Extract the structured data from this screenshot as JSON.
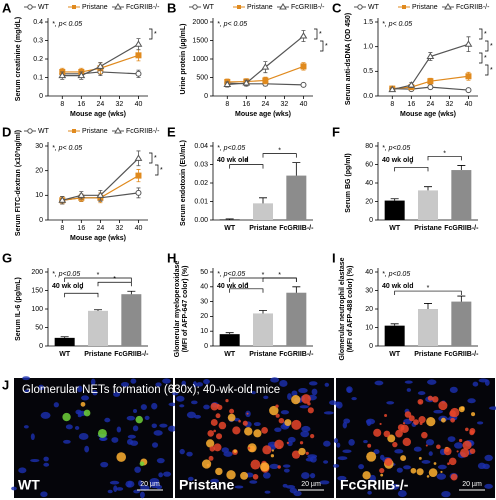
{
  "chart_data": [
    {
      "panel": "A",
      "type": "line",
      "ylabel": "Serum creatinine (mg/dL)",
      "xlabel": "Mouse age (wks)",
      "note": "*, p< 0.05",
      "sig": [
        "*"
      ],
      "x": [
        8,
        16,
        24,
        40
      ],
      "xlim": [
        2,
        44
      ],
      "xticks": [
        8,
        16,
        24,
        32,
        40
      ],
      "ylim": [
        0,
        0.4
      ],
      "yticks": [
        0,
        0.1,
        0.2,
        0.3,
        0.4
      ],
      "series": [
        {
          "name": "WT",
          "color": "#555555",
          "marker": "circle",
          "values": [
            0.12,
            0.12,
            0.13,
            0.12
          ],
          "errors": [
            0.02,
            0.02,
            0.02,
            0.02
          ]
        },
        {
          "name": "Pristane",
          "color": "#e08a1e",
          "marker": "square",
          "values": [
            0.13,
            0.13,
            0.15,
            0.22
          ],
          "errors": [
            0.02,
            0.02,
            0.03,
            0.03
          ]
        },
        {
          "name": "FcGRIIB-/-",
          "color": "#555555",
          "marker": "triangle",
          "values": [
            0.11,
            0.11,
            0.16,
            0.28
          ],
          "errors": [
            0.02,
            0.02,
            0.02,
            0.03
          ]
        }
      ]
    },
    {
      "panel": "B",
      "type": "line",
      "ylabel": "Urine protein (µg/mL)",
      "xlabel": "Mouse age (wks)",
      "note": "*, p< 0.05",
      "sig": [
        "*",
        "*"
      ],
      "x": [
        8,
        16,
        24,
        40
      ],
      "xlim": [
        2,
        44
      ],
      "xticks": [
        8,
        16,
        24,
        32,
        40
      ],
      "ylim": [
        0,
        2000
      ],
      "yticks": [
        0,
        500,
        1000,
        1500,
        2000
      ],
      "series": [
        {
          "name": "WT",
          "color": "#555555",
          "marker": "circle",
          "values": [
            350,
            330,
            330,
            300
          ],
          "errors": [
            80,
            60,
            60,
            40
          ]
        },
        {
          "name": "Pristane",
          "color": "#e08a1e",
          "marker": "square",
          "values": [
            380,
            390,
            420,
            800
          ],
          "errors": [
            80,
            80,
            90,
            100
          ]
        },
        {
          "name": "FcGRIIB-/-",
          "color": "#555555",
          "marker": "triangle",
          "values": [
            310,
            350,
            780,
            1620
          ],
          "errors": [
            70,
            80,
            150,
            150
          ]
        }
      ]
    },
    {
      "panel": "C",
      "type": "line",
      "ylabel": "Serum anti-dsDNA (OD 450)",
      "xlabel": "Mouse age (wks)",
      "note": "*, p< 0.05",
      "sig": [
        "*",
        "*",
        "*",
        "*"
      ],
      "x": [
        8,
        16,
        24,
        40
      ],
      "xlim": [
        2,
        44
      ],
      "xticks": [
        8,
        16,
        24,
        32,
        40
      ],
      "ylim": [
        0,
        1.5
      ],
      "yticks": [
        {
          "value": 0,
          "label": "0.0"
        },
        0.5,
        {
          "value": 1,
          "label": "1.0"
        },
        1.5
      ],
      "series": [
        {
          "name": "WT",
          "color": "#555555",
          "marker": "circle",
          "values": [
            0.15,
            0.14,
            0.18,
            0.12
          ],
          "errors": [
            0.03,
            0.03,
            0.04,
            0.03
          ]
        },
        {
          "name": "Pristane",
          "color": "#e08a1e",
          "marker": "square",
          "values": [
            0.15,
            0.18,
            0.3,
            0.4
          ],
          "errors": [
            0.03,
            0.04,
            0.06,
            0.08
          ]
        },
        {
          "name": "FcGRIIB-/-",
          "color": "#555555",
          "marker": "triangle",
          "values": [
            0.13,
            0.22,
            0.8,
            1.05
          ],
          "errors": [
            0.03,
            0.05,
            0.08,
            0.15
          ]
        }
      ]
    },
    {
      "panel": "D",
      "type": "line",
      "ylabel": "Serum FITC-dextran (x10³ng/ml)",
      "xlabel": "Mouse age (wks)",
      "note": "*, p< 0.05",
      "sig": [
        "*",
        "*"
      ],
      "x": [
        8,
        16,
        24,
        40
      ],
      "xlim": [
        2,
        44
      ],
      "xticks": [
        8,
        16,
        24,
        32,
        40
      ],
      "ylim": [
        0,
        30
      ],
      "yticks": [
        0,
        10,
        20,
        30
      ],
      "series": [
        {
          "name": "WT",
          "color": "#555555",
          "marker": "circle",
          "values": [
            8,
            9,
            9,
            11
          ],
          "errors": [
            1.5,
            1.5,
            1.5,
            2
          ]
        },
        {
          "name": "Pristane",
          "color": "#e08a1e",
          "marker": "square",
          "values": [
            8,
            9,
            9,
            18
          ],
          "errors": [
            1.5,
            1.5,
            2,
            2.5
          ]
        },
        {
          "name": "FcGRIIB-/-",
          "color": "#555555",
          "marker": "triangle",
          "values": [
            8,
            10,
            10,
            25
          ],
          "errors": [
            1.5,
            1.5,
            2,
            3
          ]
        }
      ]
    },
    {
      "panel": "E",
      "type": "bar",
      "ylabel": "Serum endotoxin (EU/mL)",
      "note": "*, p<0.05",
      "age": "40 wk old",
      "sig": [
        "*",
        "*"
      ],
      "categories": [
        "WT",
        "Pristane",
        "FcGRIIB-/-"
      ],
      "colors": [
        "#000000",
        "#c8c8c8",
        "#8c8c8c"
      ],
      "values": [
        0.0003,
        0.009,
        0.024
      ],
      "errors": [
        0.0003,
        0.003,
        0.007
      ],
      "ylim": [
        0,
        0.04
      ],
      "yticks": [
        {
          "value": 0,
          "label": "0.00"
        },
        0.01,
        0.02,
        0.03,
        0.04
      ]
    },
    {
      "panel": "F",
      "type": "bar",
      "ylabel": "Serum BG (pg/ml)",
      "note": "*, p<0.05",
      "age": "40 wk old",
      "sig": [
        "*",
        "*"
      ],
      "categories": [
        "WT",
        "Pristane",
        "FcGRIIB-/-"
      ],
      "colors": [
        "#000000",
        "#c8c8c8",
        "#8c8c8c"
      ],
      "values": [
        21,
        32,
        54
      ],
      "errors": [
        2,
        4,
        5
      ],
      "ylim": [
        0,
        80
      ],
      "yticks": [
        0,
        20,
        40,
        60,
        80
      ]
    },
    {
      "panel": "G",
      "type": "bar",
      "ylabel": "Serum IL-6 (pg/mL)",
      "note": "*, p<0.05",
      "age": "40 wk old",
      "sig": [
        "*",
        "*",
        "*"
      ],
      "categories": [
        "WT",
        "Pristane",
        "FcGRIIB-/-"
      ],
      "colors": [
        "#000000",
        "#c8c8c8",
        "#8c8c8c"
      ],
      "values": [
        22,
        95,
        140
      ],
      "errors": [
        3,
        3,
        8
      ],
      "ylim": [
        0,
        200
      ],
      "yticks": [
        0,
        50,
        100,
        150,
        200
      ]
    },
    {
      "panel": "H",
      "type": "bar",
      "ylabel": [
        "Glomerular myeloperoxidase",
        "(MFI of AFP-647 color) (%)"
      ],
      "note": "*, p<0.05",
      "age": "40 wk old",
      "sig": [
        "*",
        "*",
        "*"
      ],
      "categories": [
        "WT",
        "Pristane",
        "FcGRIIB-/-"
      ],
      "colors": [
        "#000000",
        "#c8c8c8",
        "#8c8c8c"
      ],
      "values": [
        8,
        22,
        36
      ],
      "errors": [
        1,
        2,
        4
      ],
      "ylim": [
        0,
        50
      ],
      "yticks": [
        0,
        10,
        20,
        30,
        40,
        50
      ]
    },
    {
      "panel": "I",
      "type": "bar",
      "ylabel": [
        "Glomerular neutrophil elastase",
        "(MFI of AFP-488 color) (%)"
      ],
      "note": "*, p<0.05",
      "age": "40 wk old",
      "sig": [
        "*"
      ],
      "categories": [
        "WT",
        "Pristane",
        "FcGRIIB-/-"
      ],
      "colors": [
        "#000000",
        "#c8c8c8",
        "#8c8c8c"
      ],
      "values": [
        11,
        20,
        24
      ],
      "errors": [
        1,
        3,
        3
      ],
      "ylim": [
        0,
        40
      ],
      "yticks": [
        0,
        10,
        20,
        30,
        40
      ]
    }
  ],
  "image_panel": {
    "panel": "J",
    "title": "Glomerular NETs formation (630x); 40-wk-old mice",
    "images": [
      {
        "label": "WT",
        "scale": "20 µm"
      },
      {
        "label": "Pristane",
        "scale": "20 µm"
      },
      {
        "label": "FcGRIIB-/-",
        "scale": "20 µm"
      }
    ]
  }
}
